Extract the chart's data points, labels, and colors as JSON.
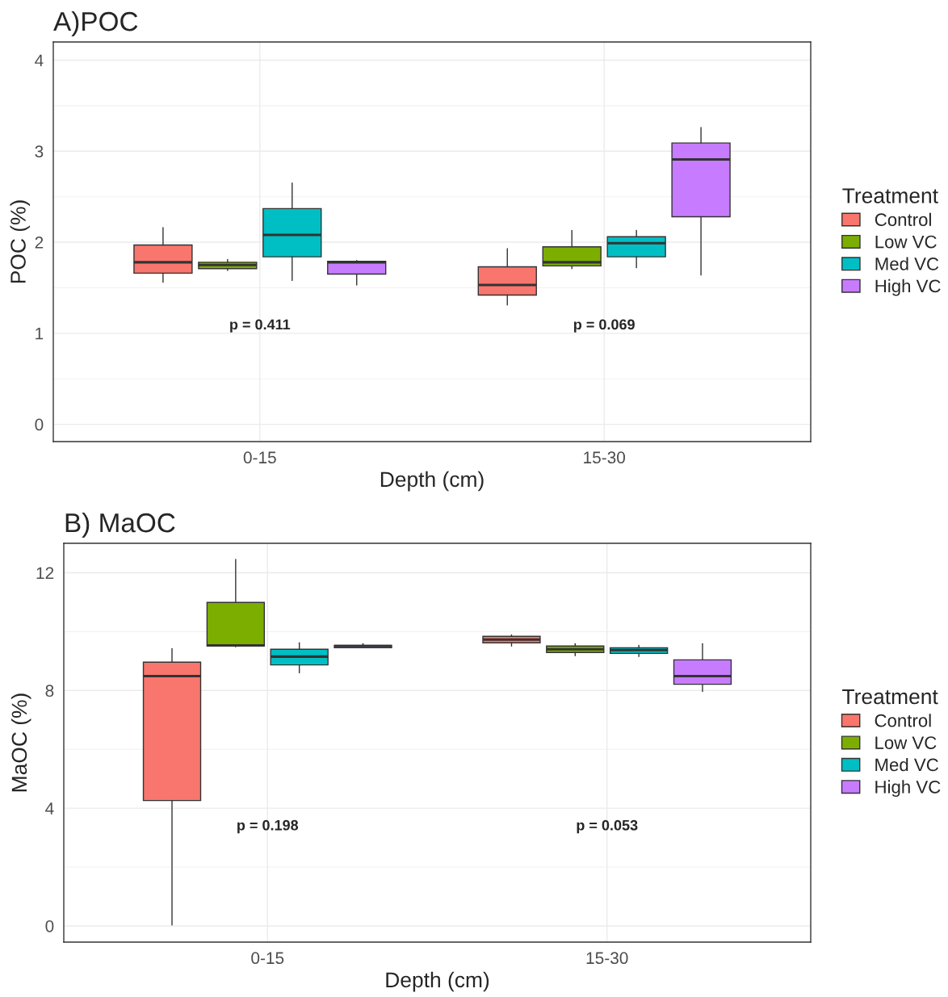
{
  "chart_data": [
    {
      "type": "box",
      "title": "A)POC",
      "xlabel": "Depth (cm)",
      "ylabel": "POC (%)",
      "legend_title": "Treatment",
      "categories": [
        "0-15",
        "15-30"
      ],
      "ylim": [
        -0.19,
        4.2
      ],
      "yticks": [
        0,
        1,
        2,
        3,
        4
      ],
      "grid": true,
      "legend": "right",
      "series": [
        {
          "name": "Control",
          "color": "#f8766d",
          "boxes": [
            {
              "low": 1.56,
              "q1": 1.66,
              "median": 1.78,
              "q3": 1.97,
              "high": 2.16
            },
            {
              "low": 1.31,
              "q1": 1.42,
              "median": 1.53,
              "q3": 1.73,
              "high": 1.93
            }
          ]
        },
        {
          "name": "Low VC",
          "color": "#7cae00",
          "boxes": [
            {
              "low": 1.69,
              "q1": 1.71,
              "median": 1.75,
              "q3": 1.78,
              "high": 1.81
            },
            {
              "low": 1.71,
              "q1": 1.74,
              "median": 1.78,
              "q3": 1.95,
              "high": 2.13
            }
          ]
        },
        {
          "name": "Med VC",
          "color": "#00bfc4",
          "boxes": [
            {
              "low": 1.58,
              "q1": 1.84,
              "median": 2.08,
              "q3": 2.37,
              "high": 2.65
            },
            {
              "low": 1.72,
              "q1": 1.84,
              "median": 1.99,
              "q3": 2.06,
              "high": 2.13
            }
          ]
        },
        {
          "name": "High VC",
          "color": "#c77cff",
          "boxes": [
            {
              "low": 1.53,
              "q1": 1.65,
              "median": 1.78,
              "q3": 1.79,
              "high": 1.8
            },
            {
              "low": 1.64,
              "q1": 2.28,
              "median": 2.91,
              "q3": 3.09,
              "high": 3.26
            }
          ]
        }
      ],
      "annotations": [
        "p = 0.411",
        "p = 0.069"
      ]
    },
    {
      "type": "box",
      "title": "B) MaOC",
      "xlabel": "Depth (cm)",
      "ylabel": "MaOC (%)",
      "legend_title": "Treatment",
      "categories": [
        "0-15",
        "15-30"
      ],
      "ylim": [
        -0.55,
        13.0
      ],
      "yticks": [
        0,
        4,
        8,
        12
      ],
      "grid": true,
      "legend": "right",
      "series": [
        {
          "name": "Control",
          "color": "#f8766d",
          "boxes": [
            {
              "low": 0.03,
              "q1": 4.26,
              "median": 8.49,
              "q3": 8.96,
              "high": 9.42
            },
            {
              "low": 9.51,
              "q1": 9.62,
              "median": 9.73,
              "q3": 9.84,
              "high": 9.89
            }
          ]
        },
        {
          "name": "Low VC",
          "color": "#7cae00",
          "boxes": [
            {
              "low": 9.48,
              "q1": 9.51,
              "median": 9.53,
              "q3": 10.99,
              "high": 12.45
            },
            {
              "low": 9.18,
              "q1": 9.29,
              "median": 9.4,
              "q3": 9.51,
              "high": 9.59
            }
          ]
        },
        {
          "name": "Med VC",
          "color": "#00bfc4",
          "boxes": [
            {
              "low": 8.6,
              "q1": 8.87,
              "median": 9.15,
              "q3": 9.4,
              "high": 9.62
            },
            {
              "low": 9.15,
              "q1": 9.26,
              "median": 9.37,
              "q3": 9.45,
              "high": 9.53
            }
          ]
        },
        {
          "name": "High VC",
          "color": "#c77cff",
          "boxes": [
            {
              "low": 9.45,
              "q1": 9.45,
              "median": 9.51,
              "q3": 9.53,
              "high": 9.59
            },
            {
              "low": 7.97,
              "q1": 8.21,
              "median": 8.49,
              "q3": 9.04,
              "high": 9.59
            }
          ]
        }
      ],
      "annotations": [
        "p = 0.198",
        "p = 0.053"
      ]
    }
  ]
}
